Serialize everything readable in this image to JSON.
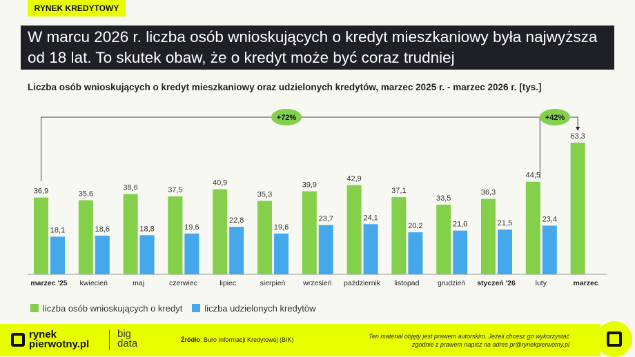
{
  "tag": "RYNEK KREDYTOWY",
  "headline": "W marcu 2026 r. liczba osób wnioskujących o kredyt mieszkaniowy była najwyższa od 18 lat. To skutek obaw, że o kredyt może być coraz trudniej",
  "chart_data": {
    "type": "bar",
    "title": "Liczba osób wnioskujących o kredyt mieszkaniowy oraz udzielonych kredytów, marzec 2025 r. - marzec 2026 r. [tys.]",
    "categories": [
      "marzec '25",
      "kwiecień",
      "maj",
      "czerwiec",
      "lipiec",
      "sierpień",
      "wrzesień",
      "październik",
      "listopad",
      "grudzień",
      "styczeń '26",
      "luty",
      "marzec"
    ],
    "bold_categories": [
      0,
      10,
      12
    ],
    "series": [
      {
        "name": "liczba osób wnioskujących o kredyt",
        "color": "#84d04a",
        "values": [
          36.9,
          35.6,
          38.6,
          37.5,
          40.9,
          35.3,
          39.9,
          42.9,
          37.1,
          33.5,
          36.3,
          44.5,
          63.3
        ]
      },
      {
        "name": "liczba udzielonych kredytów",
        "color": "#45a8ea",
        "values": [
          18.1,
          18.6,
          18.8,
          19.6,
          22.8,
          19.6,
          23.7,
          24.1,
          20.2,
          21.0,
          21.5,
          23.4,
          null
        ]
      }
    ],
    "ylim": [
      0,
      65
    ],
    "annotations": [
      {
        "label": "+72%",
        "from": "marzec '25",
        "to": "marzec"
      },
      {
        "label": "+42%",
        "from": "luty",
        "to": "marzec"
      }
    ]
  },
  "footer": {
    "logo1": "rynek",
    "logo2": "pierwotny.pl",
    "logo3": "big",
    "logo4": "data",
    "source_label": "Źródło",
    "source": ": Buro Informacji Kredytowej (BIK)",
    "copy1": "Ten materiał objęty jest prawem autorskim. Jeżeli chcesz go wykorzystać",
    "copy2": "zgodnie z prawem napisz na adres ",
    "email": "pr@rynekpierwotny.pl"
  }
}
